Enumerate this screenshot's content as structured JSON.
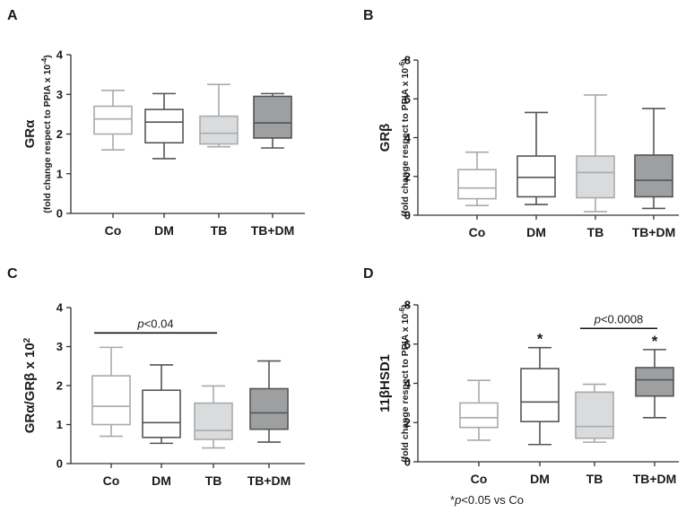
{
  "chart_data": [
    {
      "type": "boxplot",
      "panel": "A",
      "ylabel_main": "GRα",
      "ylabel_sub": "(fold change respect to PPIA x 10",
      "ylabel_exp": "-4",
      "ylabel_close": ")",
      "ylim": [
        0,
        4
      ],
      "yticks": [
        "0",
        "1",
        "2",
        "3",
        "4"
      ],
      "categories": [
        "Co",
        "DM",
        "TB",
        "TB+DM"
      ],
      "boxes": [
        {
          "min": 1.6,
          "q1": 2.0,
          "median": 2.38,
          "q3": 2.7,
          "max": 3.1
        },
        {
          "min": 1.38,
          "q1": 1.78,
          "median": 2.3,
          "q3": 2.62,
          "max": 3.02
        },
        {
          "min": 1.68,
          "q1": 1.75,
          "median": 2.02,
          "q3": 2.45,
          "max": 3.25
        },
        {
          "min": 1.65,
          "q1": 1.9,
          "median": 2.28,
          "q3": 2.95,
          "max": 3.02
        }
      ]
    },
    {
      "type": "boxplot",
      "panel": "B",
      "ylabel_main": "GRβ",
      "ylabel_sub": "(fold change respect to PPIA x 10",
      "ylabel_exp": "-6",
      "ylabel_close": ")",
      "ylim": [
        0,
        8
      ],
      "yticks": [
        "0",
        "2",
        "4",
        "6",
        "8"
      ],
      "categories": [
        "Co",
        "DM",
        "TB",
        "TB+DM"
      ],
      "boxes": [
        {
          "min": 0.5,
          "q1": 0.85,
          "median": 1.4,
          "q3": 2.35,
          "max": 3.25
        },
        {
          "min": 0.55,
          "q1": 0.95,
          "median": 1.95,
          "q3": 3.05,
          "max": 5.3
        },
        {
          "min": 0.18,
          "q1": 0.9,
          "median": 2.2,
          "q3": 3.05,
          "max": 6.2
        },
        {
          "min": 0.35,
          "q1": 0.95,
          "median": 1.8,
          "q3": 3.1,
          "max": 5.5
        }
      ]
    },
    {
      "type": "boxplot",
      "panel": "C",
      "ylabel_main": "GRα/GRβ x 10",
      "ylabel_exp": "2",
      "ylim": [
        0,
        4
      ],
      "yticks": [
        "0",
        "1",
        "2",
        "3",
        "4"
      ],
      "categories": [
        "Co",
        "DM",
        "TB",
        "TB+DM"
      ],
      "boxes": [
        {
          "min": 0.7,
          "q1": 1.0,
          "median": 1.47,
          "q3": 2.25,
          "max": 2.98
        },
        {
          "min": 0.52,
          "q1": 0.67,
          "median": 1.05,
          "q3": 1.88,
          "max": 2.53
        },
        {
          "min": 0.4,
          "q1": 0.62,
          "median": 0.85,
          "q3": 1.55,
          "max": 1.99
        },
        {
          "min": 0.55,
          "q1": 0.88,
          "median": 1.3,
          "q3": 1.92,
          "max": 2.63
        }
      ],
      "bracket": {
        "from": 0,
        "to": 2,
        "y": 3.35,
        "label_italic": "p",
        "label": "<0.04"
      }
    },
    {
      "type": "boxplot",
      "panel": "D",
      "ylabel_main": "11βHSD1",
      "ylabel_sub": "(fold change respect to PPIA x 10",
      "ylabel_exp": "-6",
      "ylabel_close": ")",
      "ylim": [
        0,
        8
      ],
      "yticks": [
        "0",
        "2",
        "4",
        "6",
        "8"
      ],
      "categories": [
        "Co",
        "DM",
        "TB",
        "TB+DM"
      ],
      "boxes": [
        {
          "min": 1.1,
          "q1": 1.75,
          "median": 2.25,
          "q3": 3.0,
          "max": 4.15
        },
        {
          "min": 0.88,
          "q1": 2.05,
          "median": 3.05,
          "q3": 4.75,
          "max": 5.82
        },
        {
          "min": 1.0,
          "q1": 1.2,
          "median": 1.8,
          "q3": 3.55,
          "max": 3.95
        },
        {
          "min": 2.25,
          "q1": 3.35,
          "median": 4.18,
          "q3": 4.8,
          "max": 5.72
        }
      ],
      "stars": [
        {
          "index": 1,
          "label": "*"
        },
        {
          "index": 3,
          "label": "*"
        }
      ],
      "bracket": {
        "from": 2,
        "to": 3,
        "y": 6.8,
        "label_italic": "p",
        "label": "<0.0008"
      }
    }
  ],
  "styles": {
    "box_fill": [
      "#ffffff",
      "#ffffff",
      "#d9dbdc",
      "#9d9fa1"
    ],
    "box_stroke": [
      "#a8aaac",
      "#555555",
      "#a8aaac",
      "#555555"
    ],
    "axis_color": "#333333"
  },
  "footnote": {
    "star": "*",
    "p": "p",
    "text": "<0.05 vs Co"
  }
}
